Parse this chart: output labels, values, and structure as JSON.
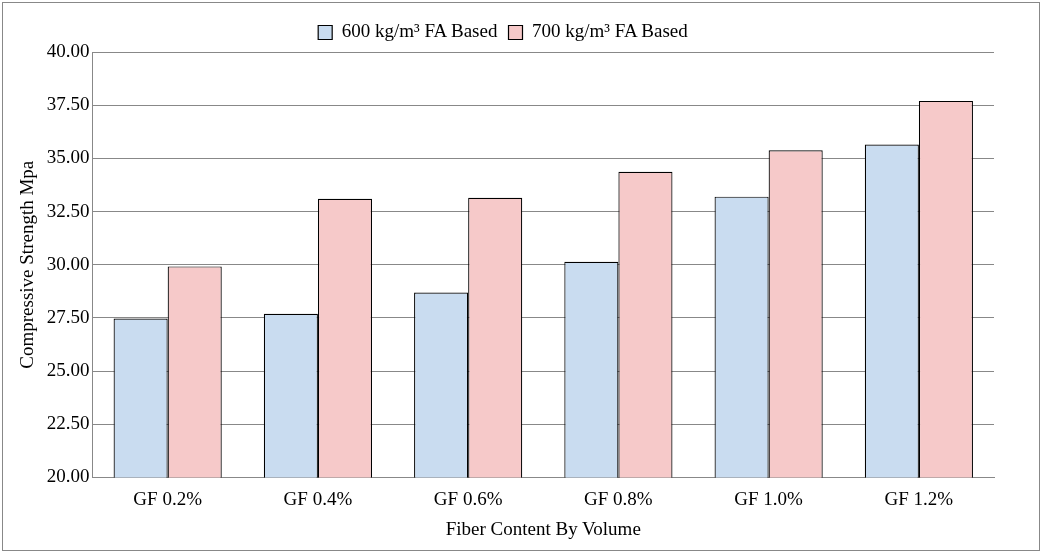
{
  "chart_data": {
    "type": "bar",
    "xlabel": "Fiber Content By Volume",
    "ylabel": "Compressive Strength Mpa",
    "categories": [
      "GF 0.2%",
      "GF 0.4%",
      "GF 0.6%",
      "GF 0.8%",
      "GF 1.0%",
      "GF 1.2%"
    ],
    "series": [
      {
        "name": "600 kg/m³ FA Based",
        "color": "#c9dcf0",
        "values": [
          27.47,
          27.69,
          28.69,
          30.14,
          33.2,
          35.65
        ]
      },
      {
        "name": "700 kg/m³ FA Based",
        "color": "#f6c9c9",
        "values": [
          29.92,
          33.1,
          33.15,
          34.37,
          35.38,
          37.7
        ]
      }
    ],
    "ylim": [
      20,
      40
    ],
    "yticks": [
      {
        "value": 20,
        "label": "20.00"
      },
      {
        "value": 22.5,
        "label": "22.50"
      },
      {
        "value": 25,
        "label": "25.00"
      },
      {
        "value": 27.5,
        "label": "27.50"
      },
      {
        "value": 30,
        "label": "30.00"
      },
      {
        "value": 32.5,
        "label": "32.50"
      },
      {
        "value": 35,
        "label": "35.00"
      },
      {
        "value": 37.5,
        "label": "37.50"
      },
      {
        "value": 40,
        "label": "40.00"
      }
    ],
    "grid": "y",
    "legend": "top"
  }
}
